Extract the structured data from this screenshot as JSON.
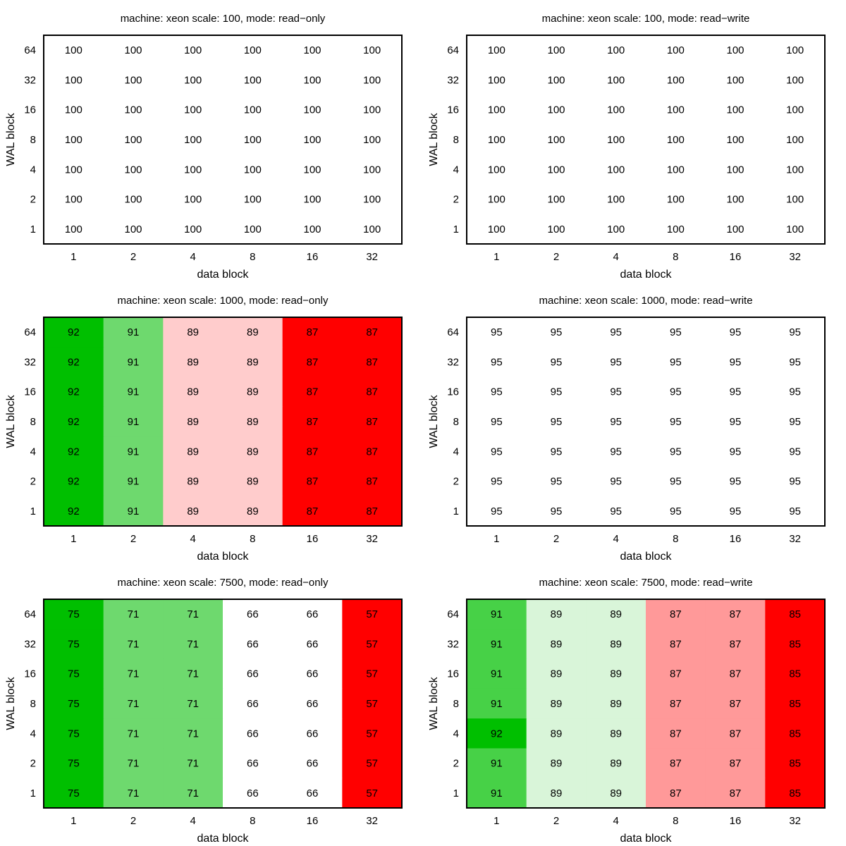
{
  "chart_data": [
    {
      "type": "heatmap",
      "title": "machine: xeon scale: 100, mode: read−only",
      "xlabel": "data block",
      "ylabel": "WAL block",
      "x_ticks": [
        "1",
        "2",
        "4",
        "8",
        "16",
        "32"
      ],
      "y_ticks": [
        "64",
        "32",
        "16",
        "8",
        "4",
        "2",
        "1"
      ],
      "values": [
        [
          100,
          100,
          100,
          100,
          100,
          100
        ],
        [
          100,
          100,
          100,
          100,
          100,
          100
        ],
        [
          100,
          100,
          100,
          100,
          100,
          100
        ],
        [
          100,
          100,
          100,
          100,
          100,
          100
        ],
        [
          100,
          100,
          100,
          100,
          100,
          100
        ],
        [
          100,
          100,
          100,
          100,
          100,
          100
        ],
        [
          100,
          100,
          100,
          100,
          100,
          100
        ]
      ],
      "cell_colors": [
        [
          "#ffffff",
          "#ffffff",
          "#ffffff",
          "#ffffff",
          "#ffffff",
          "#ffffff"
        ],
        [
          "#ffffff",
          "#ffffff",
          "#ffffff",
          "#ffffff",
          "#ffffff",
          "#ffffff"
        ],
        [
          "#ffffff",
          "#ffffff",
          "#ffffff",
          "#ffffff",
          "#ffffff",
          "#ffffff"
        ],
        [
          "#ffffff",
          "#ffffff",
          "#ffffff",
          "#ffffff",
          "#ffffff",
          "#ffffff"
        ],
        [
          "#ffffff",
          "#ffffff",
          "#ffffff",
          "#ffffff",
          "#ffffff",
          "#ffffff"
        ],
        [
          "#ffffff",
          "#ffffff",
          "#ffffff",
          "#ffffff",
          "#ffffff",
          "#ffffff"
        ],
        [
          "#ffffff",
          "#ffffff",
          "#ffffff",
          "#ffffff",
          "#ffffff",
          "#ffffff"
        ]
      ]
    },
    {
      "type": "heatmap",
      "title": "machine: xeon scale: 100, mode: read−write",
      "xlabel": "data block",
      "ylabel": "WAL block",
      "x_ticks": [
        "1",
        "2",
        "4",
        "8",
        "16",
        "32"
      ],
      "y_ticks": [
        "64",
        "32",
        "16",
        "8",
        "4",
        "2",
        "1"
      ],
      "values": [
        [
          100,
          100,
          100,
          100,
          100,
          100
        ],
        [
          100,
          100,
          100,
          100,
          100,
          100
        ],
        [
          100,
          100,
          100,
          100,
          100,
          100
        ],
        [
          100,
          100,
          100,
          100,
          100,
          100
        ],
        [
          100,
          100,
          100,
          100,
          100,
          100
        ],
        [
          100,
          100,
          100,
          100,
          100,
          100
        ],
        [
          100,
          100,
          100,
          100,
          100,
          100
        ]
      ],
      "cell_colors": [
        [
          "#ffffff",
          "#ffffff",
          "#ffffff",
          "#ffffff",
          "#ffffff",
          "#ffffff"
        ],
        [
          "#ffffff",
          "#ffffff",
          "#ffffff",
          "#ffffff",
          "#ffffff",
          "#ffffff"
        ],
        [
          "#ffffff",
          "#ffffff",
          "#ffffff",
          "#ffffff",
          "#ffffff",
          "#ffffff"
        ],
        [
          "#ffffff",
          "#ffffff",
          "#ffffff",
          "#ffffff",
          "#ffffff",
          "#ffffff"
        ],
        [
          "#ffffff",
          "#ffffff",
          "#ffffff",
          "#ffffff",
          "#ffffff",
          "#ffffff"
        ],
        [
          "#ffffff",
          "#ffffff",
          "#ffffff",
          "#ffffff",
          "#ffffff",
          "#ffffff"
        ],
        [
          "#ffffff",
          "#ffffff",
          "#ffffff",
          "#ffffff",
          "#ffffff",
          "#ffffff"
        ]
      ]
    },
    {
      "type": "heatmap",
      "title": "machine: xeon scale: 1000, mode: read−only",
      "xlabel": "data block",
      "ylabel": "WAL block",
      "x_ticks": [
        "1",
        "2",
        "4",
        "8",
        "16",
        "32"
      ],
      "y_ticks": [
        "64",
        "32",
        "16",
        "8",
        "4",
        "2",
        "1"
      ],
      "values": [
        [
          92,
          91,
          89,
          89,
          87,
          87
        ],
        [
          92,
          91,
          89,
          89,
          87,
          87
        ],
        [
          92,
          91,
          89,
          89,
          87,
          87
        ],
        [
          92,
          91,
          89,
          89,
          87,
          87
        ],
        [
          92,
          91,
          89,
          89,
          87,
          87
        ],
        [
          92,
          91,
          89,
          89,
          87,
          87
        ],
        [
          92,
          91,
          89,
          89,
          87,
          87
        ]
      ],
      "cell_colors": [
        [
          "#00bf00",
          "#6ed96e",
          "#ffcccc",
          "#ffcccc",
          "#ff0000",
          "#ff0000"
        ],
        [
          "#00bf00",
          "#6ed96e",
          "#ffcccc",
          "#ffcccc",
          "#ff0000",
          "#ff0000"
        ],
        [
          "#00bf00",
          "#6ed96e",
          "#ffcccc",
          "#ffcccc",
          "#ff0000",
          "#ff0000"
        ],
        [
          "#00bf00",
          "#6ed96e",
          "#ffcccc",
          "#ffcccc",
          "#ff0000",
          "#ff0000"
        ],
        [
          "#00bf00",
          "#6ed96e",
          "#ffcccc",
          "#ffcccc",
          "#ff0000",
          "#ff0000"
        ],
        [
          "#00bf00",
          "#6ed96e",
          "#ffcccc",
          "#ffcccc",
          "#ff0000",
          "#ff0000"
        ],
        [
          "#00bf00",
          "#6ed96e",
          "#ffcccc",
          "#ffcccc",
          "#ff0000",
          "#ff0000"
        ]
      ]
    },
    {
      "type": "heatmap",
      "title": "machine: xeon scale: 1000, mode: read−write",
      "xlabel": "data block",
      "ylabel": "WAL block",
      "x_ticks": [
        "1",
        "2",
        "4",
        "8",
        "16",
        "32"
      ],
      "y_ticks": [
        "64",
        "32",
        "16",
        "8",
        "4",
        "2",
        "1"
      ],
      "values": [
        [
          95,
          95,
          95,
          95,
          95,
          95
        ],
        [
          95,
          95,
          95,
          95,
          95,
          95
        ],
        [
          95,
          95,
          95,
          95,
          95,
          95
        ],
        [
          95,
          95,
          95,
          95,
          95,
          95
        ],
        [
          95,
          95,
          95,
          95,
          95,
          95
        ],
        [
          95,
          95,
          95,
          95,
          95,
          95
        ],
        [
          95,
          95,
          95,
          95,
          95,
          95
        ]
      ],
      "cell_colors": [
        [
          "#ffffff",
          "#ffffff",
          "#ffffff",
          "#ffffff",
          "#ffffff",
          "#ffffff"
        ],
        [
          "#ffffff",
          "#ffffff",
          "#ffffff",
          "#ffffff",
          "#ffffff",
          "#ffffff"
        ],
        [
          "#ffffff",
          "#ffffff",
          "#ffffff",
          "#ffffff",
          "#ffffff",
          "#ffffff"
        ],
        [
          "#ffffff",
          "#ffffff",
          "#ffffff",
          "#ffffff",
          "#ffffff",
          "#ffffff"
        ],
        [
          "#ffffff",
          "#ffffff",
          "#ffffff",
          "#ffffff",
          "#ffffff",
          "#ffffff"
        ],
        [
          "#ffffff",
          "#ffffff",
          "#ffffff",
          "#ffffff",
          "#ffffff",
          "#ffffff"
        ],
        [
          "#ffffff",
          "#ffffff",
          "#ffffff",
          "#ffffff",
          "#ffffff",
          "#ffffff"
        ]
      ]
    },
    {
      "type": "heatmap",
      "title": "machine: xeon scale: 7500, mode: read−only",
      "xlabel": "data block",
      "ylabel": "WAL block",
      "x_ticks": [
        "1",
        "2",
        "4",
        "8",
        "16",
        "32"
      ],
      "y_ticks": [
        "64",
        "32",
        "16",
        "8",
        "4",
        "2",
        "1"
      ],
      "values": [
        [
          75,
          71,
          71,
          66,
          66,
          57
        ],
        [
          75,
          71,
          71,
          66,
          66,
          57
        ],
        [
          75,
          71,
          71,
          66,
          66,
          57
        ],
        [
          75,
          71,
          71,
          66,
          66,
          57
        ],
        [
          75,
          71,
          71,
          66,
          66,
          57
        ],
        [
          75,
          71,
          71,
          66,
          66,
          57
        ],
        [
          75,
          71,
          71,
          66,
          66,
          57
        ]
      ],
      "cell_colors": [
        [
          "#00bf00",
          "#6ed96e",
          "#6ed96e",
          "#ffffff",
          "#ffffff",
          "#ff0000"
        ],
        [
          "#00bf00",
          "#6ed96e",
          "#6ed96e",
          "#ffffff",
          "#ffffff",
          "#ff0000"
        ],
        [
          "#00bf00",
          "#6ed96e",
          "#6ed96e",
          "#ffffff",
          "#ffffff",
          "#ff0000"
        ],
        [
          "#00bf00",
          "#6ed96e",
          "#6ed96e",
          "#ffffff",
          "#ffffff",
          "#ff0000"
        ],
        [
          "#00bf00",
          "#6ed96e",
          "#6ed96e",
          "#ffffff",
          "#ffffff",
          "#ff0000"
        ],
        [
          "#00bf00",
          "#6ed96e",
          "#6ed96e",
          "#ffffff",
          "#ffffff",
          "#ff0000"
        ],
        [
          "#00bf00",
          "#6ed96e",
          "#6ed96e",
          "#ffffff",
          "#ffffff",
          "#ff0000"
        ]
      ]
    },
    {
      "type": "heatmap",
      "title": "machine: xeon scale: 7500, mode: read−write",
      "xlabel": "data block",
      "ylabel": "WAL block",
      "x_ticks": [
        "1",
        "2",
        "4",
        "8",
        "16",
        "32"
      ],
      "y_ticks": [
        "64",
        "32",
        "16",
        "8",
        "4",
        "2",
        "1"
      ],
      "values": [
        [
          91,
          89,
          89,
          87,
          87,
          85
        ],
        [
          91,
          89,
          89,
          87,
          87,
          85
        ],
        [
          91,
          89,
          89,
          87,
          87,
          85
        ],
        [
          91,
          89,
          89,
          87,
          87,
          85
        ],
        [
          92,
          89,
          89,
          87,
          87,
          85
        ],
        [
          91,
          89,
          89,
          87,
          87,
          85
        ],
        [
          91,
          89,
          89,
          87,
          87,
          85
        ]
      ],
      "cell_colors": [
        [
          "#47d147",
          "#d9f5d9",
          "#d9f5d9",
          "#ff9999",
          "#ff9999",
          "#ff0000"
        ],
        [
          "#47d147",
          "#d9f5d9",
          "#d9f5d9",
          "#ff9999",
          "#ff9999",
          "#ff0000"
        ],
        [
          "#47d147",
          "#d9f5d9",
          "#d9f5d9",
          "#ff9999",
          "#ff9999",
          "#ff0000"
        ],
        [
          "#47d147",
          "#d9f5d9",
          "#d9f5d9",
          "#ff9999",
          "#ff9999",
          "#ff0000"
        ],
        [
          "#00bf00",
          "#d9f5d9",
          "#d9f5d9",
          "#ff9999",
          "#ff9999",
          "#ff0000"
        ],
        [
          "#47d147",
          "#d9f5d9",
          "#d9f5d9",
          "#ff9999",
          "#ff9999",
          "#ff0000"
        ],
        [
          "#47d147",
          "#d9f5d9",
          "#d9f5d9",
          "#ff9999",
          "#ff9999",
          "#ff0000"
        ]
      ]
    }
  ]
}
